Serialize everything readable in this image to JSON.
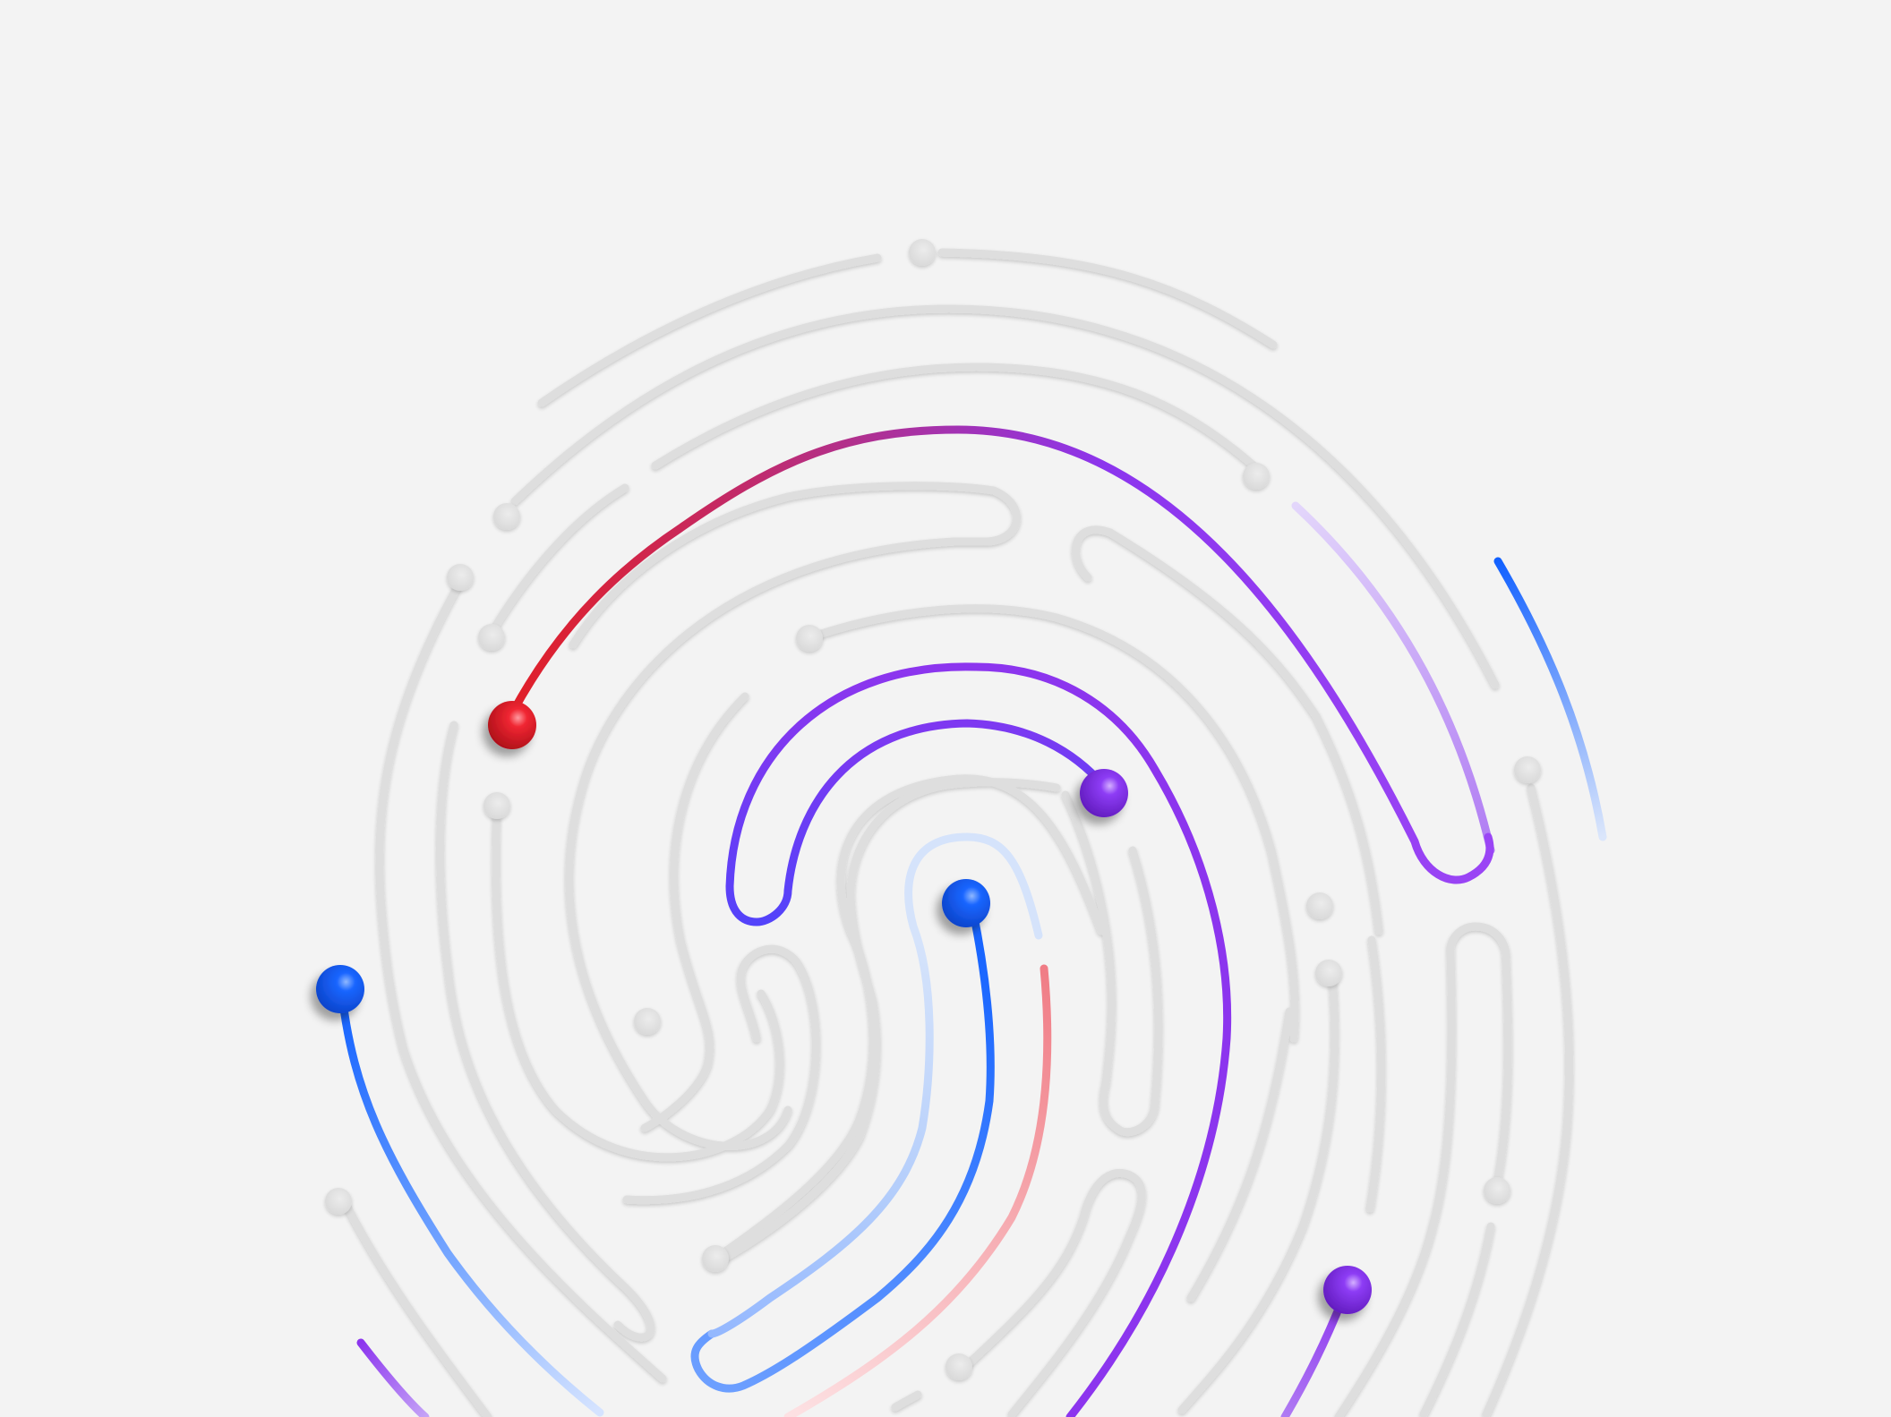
{
  "scene": {
    "subject": "fingerprint",
    "background_color": "#f3f3f3",
    "ridge_color": "#dedede",
    "ridge_highlight": "#f7f7f7",
    "accent_colors": {
      "red": "#e0202a",
      "magenta": "#b0308f",
      "purple": "#8c35ee",
      "lilac": "#c9a9f6",
      "blue": "#1160ff",
      "light_blue": "#9fc0ff",
      "pink": "#f08f96"
    },
    "highlighted_paths": [
      {
        "name": "red-to-purple-arc",
        "colors": [
          "red",
          "magenta",
          "purple"
        ]
      },
      {
        "name": "purple-s-curve",
        "colors": [
          "purple"
        ]
      },
      {
        "name": "inner-purple-hook",
        "colors": [
          "purple"
        ]
      },
      {
        "name": "purple-to-blue-loop",
        "colors": [
          "purple",
          "blue"
        ]
      },
      {
        "name": "blue-center-curve",
        "colors": [
          "blue",
          "light_blue"
        ]
      },
      {
        "name": "blue-left-curve",
        "colors": [
          "blue",
          "light_blue"
        ]
      },
      {
        "name": "pink-curve",
        "colors": [
          "pink"
        ]
      },
      {
        "name": "lower-purple-line",
        "colors": [
          "purple"
        ]
      },
      {
        "name": "right-blue-arc",
        "colors": [
          "blue",
          "light_blue"
        ]
      }
    ],
    "marker_balls": [
      {
        "name": "red-marker",
        "color": "red"
      },
      {
        "name": "purple-marker-upper",
        "color": "purple"
      },
      {
        "name": "blue-marker-center",
        "color": "blue"
      },
      {
        "name": "blue-marker-left",
        "color": "blue"
      },
      {
        "name": "purple-marker-lower",
        "color": "purple"
      }
    ]
  }
}
